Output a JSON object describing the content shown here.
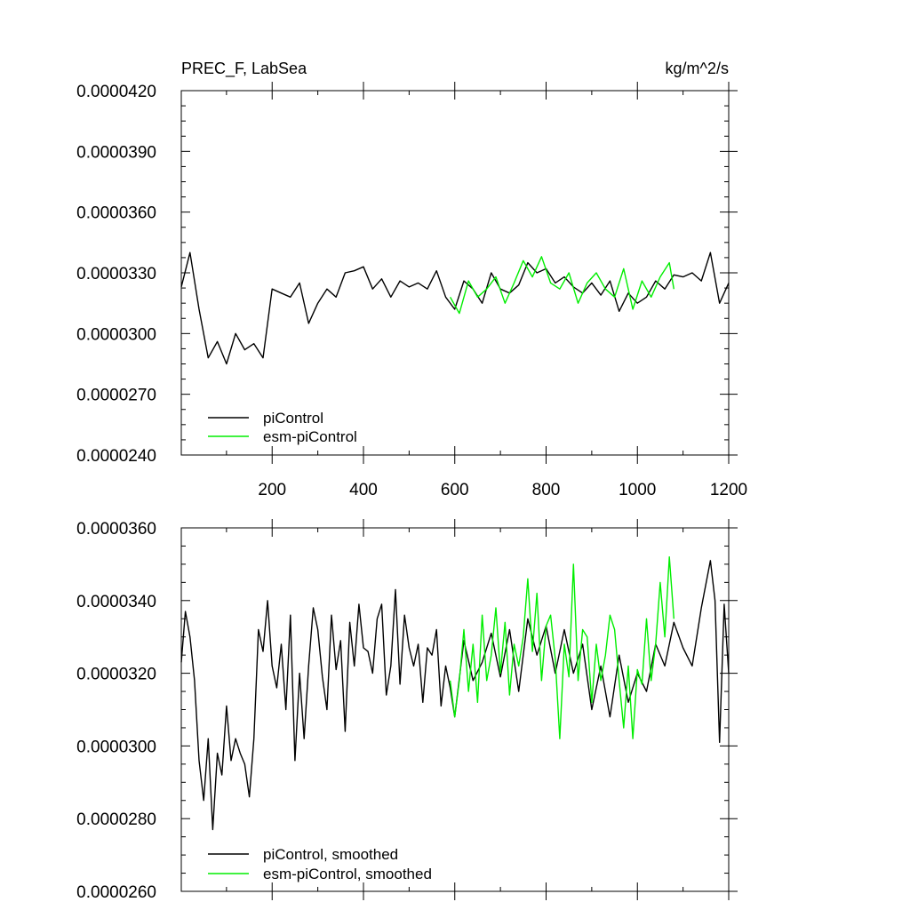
{
  "chart_data": [
    {
      "type": "line",
      "title": "PREC_F, LabSea",
      "units": "kg/m^2/s",
      "xlim": [
        1,
        1200
      ],
      "ylim": [
        2.4e-05,
        4.2e-05
      ],
      "xticks": [
        200,
        400,
        600,
        800,
        1000,
        1200
      ],
      "xtick_labels": [
        "200",
        "400",
        "600",
        "800",
        "1000",
        "1200"
      ],
      "yticks": [
        2.4e-05,
        2.7e-05,
        3e-05,
        3.3e-05,
        3.6e-05,
        3.9e-05,
        4.2e-05
      ],
      "ytick_labels": [
        "0.0000240",
        "0.0000270",
        "0.0000300",
        "0.0000330",
        "0.0000360",
        "0.0000390",
        "0.0000420"
      ],
      "grid": false,
      "legend": "bottom-left",
      "series": [
        {
          "name": "piControl",
          "color": "#000000",
          "x": [
            1,
            20,
            40,
            60,
            80,
            100,
            120,
            140,
            160,
            180,
            200,
            220,
            240,
            260,
            280,
            300,
            320,
            340,
            360,
            380,
            400,
            420,
            440,
            460,
            480,
            500,
            520,
            540,
            560,
            580,
            600,
            620,
            640,
            660,
            680,
            700,
            720,
            740,
            760,
            780,
            800,
            820,
            840,
            860,
            880,
            900,
            920,
            940,
            960,
            980,
            1000,
            1020,
            1040,
            1060,
            1080,
            1100,
            1120,
            1140,
            1160,
            1180,
            1200
          ],
          "y": [
            3.23e-05,
            3.4e-05,
            3.12e-05,
            2.88e-05,
            2.96e-05,
            2.85e-05,
            3e-05,
            2.92e-05,
            2.95e-05,
            2.88e-05,
            3.22e-05,
            3.2e-05,
            3.18e-05,
            3.25e-05,
            3.05e-05,
            3.15e-05,
            3.22e-05,
            3.18e-05,
            3.3e-05,
            3.31e-05,
            3.33e-05,
            3.22e-05,
            3.27e-05,
            3.18e-05,
            3.26e-05,
            3.23e-05,
            3.25e-05,
            3.22e-05,
            3.31e-05,
            3.18e-05,
            3.12e-05,
            3.26e-05,
            3.22e-05,
            3.15e-05,
            3.3e-05,
            3.22e-05,
            3.2e-05,
            3.24e-05,
            3.35e-05,
            3.3e-05,
            3.32e-05,
            3.25e-05,
            3.28e-05,
            3.23e-05,
            3.2e-05,
            3.25e-05,
            3.19e-05,
            3.26e-05,
            3.11e-05,
            3.2e-05,
            3.15e-05,
            3.18e-05,
            3.26e-05,
            3.22e-05,
            3.29e-05,
            3.28e-05,
            3.3e-05,
            3.26e-05,
            3.4e-05,
            3.15e-05,
            3.25e-05
          ]
        },
        {
          "name": "esm-piControl",
          "color": "#00ee00",
          "x": [
            590,
            610,
            630,
            650,
            670,
            690,
            710,
            730,
            750,
            770,
            790,
            810,
            830,
            850,
            870,
            890,
            910,
            930,
            950,
            970,
            990,
            1010,
            1030,
            1050,
            1070,
            1080
          ],
          "y": [
            3.18e-05,
            3.1e-05,
            3.26e-05,
            3.18e-05,
            3.22e-05,
            3.28e-05,
            3.15e-05,
            3.25e-05,
            3.36e-05,
            3.28e-05,
            3.38e-05,
            3.25e-05,
            3.22e-05,
            3.3e-05,
            3.15e-05,
            3.25e-05,
            3.3e-05,
            3.22e-05,
            3.18e-05,
            3.32e-05,
            3.12e-05,
            3.26e-05,
            3.18e-05,
            3.28e-05,
            3.35e-05,
            3.22e-05
          ]
        }
      ]
    },
    {
      "type": "line",
      "title": "",
      "xlim": [
        1,
        1200
      ],
      "ylim": [
        2.6e-05,
        3.6e-05
      ],
      "yticks": [
        2.6e-05,
        2.8e-05,
        3e-05,
        3.2e-05,
        3.4e-05,
        3.6e-05
      ],
      "ytick_labels": [
        "0.0000260",
        "0.0000280",
        "0.0000300",
        "0.0000320",
        "0.0000340",
        "0.0000360"
      ],
      "grid": false,
      "legend": "bottom-left",
      "series": [
        {
          "name": "piControl, smoothed",
          "color": "#000000",
          "x": [
            1,
            10,
            20,
            30,
            40,
            50,
            60,
            70,
            80,
            90,
            100,
            110,
            120,
            130,
            140,
            150,
            160,
            170,
            180,
            190,
            200,
            210,
            220,
            230,
            240,
            250,
            260,
            270,
            280,
            290,
            300,
            310,
            320,
            330,
            340,
            350,
            360,
            370,
            380,
            390,
            400,
            410,
            420,
            430,
            440,
            450,
            460,
            470,
            480,
            490,
            500,
            510,
            520,
            530,
            540,
            550,
            560,
            570,
            580,
            590,
            600,
            620,
            640,
            660,
            680,
            700,
            720,
            740,
            760,
            780,
            800,
            820,
            840,
            860,
            880,
            900,
            920,
            940,
            960,
            980,
            1000,
            1020,
            1040,
            1060,
            1080,
            1100,
            1120,
            1140,
            1160,
            1170,
            1180,
            1190,
            1200
          ],
          "y": [
            3.23e-05,
            3.37e-05,
            3.3e-05,
            3.18e-05,
            2.96e-05,
            2.85e-05,
            3.02e-05,
            2.77e-05,
            2.98e-05,
            2.92e-05,
            3.11e-05,
            2.96e-05,
            3.02e-05,
            2.98e-05,
            2.95e-05,
            2.86e-05,
            3.02e-05,
            3.32e-05,
            3.26e-05,
            3.4e-05,
            3.22e-05,
            3.16e-05,
            3.28e-05,
            3.1e-05,
            3.36e-05,
            2.96e-05,
            3.2e-05,
            3.02e-05,
            3.22e-05,
            3.38e-05,
            3.32e-05,
            3.19e-05,
            3.1e-05,
            3.36e-05,
            3.21e-05,
            3.29e-05,
            3.04e-05,
            3.34e-05,
            3.22e-05,
            3.39e-05,
            3.27e-05,
            3.26e-05,
            3.2e-05,
            3.35e-05,
            3.39e-05,
            3.14e-05,
            3.22e-05,
            3.43e-05,
            3.17e-05,
            3.36e-05,
            3.27e-05,
            3.22e-05,
            3.28e-05,
            3.12e-05,
            3.27e-05,
            3.25e-05,
            3.32e-05,
            3.11e-05,
            3.22e-05,
            3.16e-05,
            3.08e-05,
            3.29e-05,
            3.18e-05,
            3.23e-05,
            3.31e-05,
            3.19e-05,
            3.32e-05,
            3.15e-05,
            3.35e-05,
            3.25e-05,
            3.33e-05,
            3.2e-05,
            3.32e-05,
            3.2e-05,
            3.28e-05,
            3.1e-05,
            3.22e-05,
            3.08e-05,
            3.25e-05,
            3.12e-05,
            3.2e-05,
            3.15e-05,
            3.28e-05,
            3.22e-05,
            3.34e-05,
            3.27e-05,
            3.22e-05,
            3.38e-05,
            3.51e-05,
            3.4e-05,
            3.01e-05,
            3.39e-05,
            3.2e-05
          ]
        },
        {
          "name": "esm-piControl, smoothed",
          "color": "#00ee00",
          "x": [
            590,
            600,
            610,
            620,
            630,
            640,
            650,
            660,
            670,
            680,
            690,
            700,
            710,
            720,
            730,
            740,
            750,
            760,
            770,
            780,
            790,
            800,
            810,
            820,
            830,
            840,
            850,
            860,
            870,
            880,
            890,
            900,
            910,
            920,
            930,
            940,
            950,
            960,
            970,
            980,
            990,
            1000,
            1010,
            1020,
            1030,
            1040,
            1050,
            1060,
            1070,
            1080
          ],
          "y": [
            3.18e-05,
            3.08e-05,
            3.18e-05,
            3.32e-05,
            3.15e-05,
            3.28e-05,
            3.12e-05,
            3.36e-05,
            3.18e-05,
            3.25e-05,
            3.38e-05,
            3.2e-05,
            3.34e-05,
            3.14e-05,
            3.28e-05,
            3.22e-05,
            3.3e-05,
            3.46e-05,
            3.26e-05,
            3.42e-05,
            3.18e-05,
            3.33e-05,
            3.36e-05,
            3.24e-05,
            3.02e-05,
            3.28e-05,
            3.19e-05,
            3.5e-05,
            3.18e-05,
            3.32e-05,
            3.3e-05,
            3.12e-05,
            3.28e-05,
            3.18e-05,
            3.25e-05,
            3.36e-05,
            3.32e-05,
            3.18e-05,
            3.05e-05,
            3.22e-05,
            3.02e-05,
            3.21e-05,
            3.17e-05,
            3.35e-05,
            3.18e-05,
            3.28e-05,
            3.45e-05,
            3.3e-05,
            3.52e-05,
            3.35e-05
          ]
        }
      ]
    }
  ]
}
